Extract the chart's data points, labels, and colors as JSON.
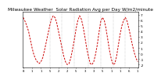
{
  "title": "Milwaukee Weather  Solar Radiation Avg per Day W/m2/minute",
  "title_fontsize": 4.2,
  "bg_color": "#ffffff",
  "line_color": "#cc0000",
  "grid_color": "#999999",
  "ylabel_color": "#000000",
  "ylim": [
    -2.5,
    7.5
  ],
  "yticks": [
    7,
    6,
    5,
    4,
    3,
    2,
    1,
    0,
    -1,
    -2
  ],
  "ytick_labels": [
    "7",
    "6",
    "5",
    "4",
    "3",
    "2",
    "1",
    "0",
    "-1",
    "-2"
  ],
  "ytick_fontsize": 3.2,
  "xtick_fontsize": 2.8,
  "data_y": [
    6.5,
    5.8,
    5.0,
    4.0,
    2.5,
    1.0,
    -0.2,
    -1.0,
    -1.5,
    -1.8,
    -1.5,
    -0.8,
    0.5,
    2.0,
    3.5,
    5.0,
    6.2,
    6.8,
    6.5,
    5.5,
    4.0,
    2.5,
    1.0,
    -0.5,
    -1.5,
    -2.0,
    -1.8,
    -0.8,
    0.8,
    2.5,
    4.5,
    6.0,
    6.8,
    6.2,
    4.8,
    3.0,
    1.0,
    -0.5,
    -1.8,
    -2.0,
    -1.5,
    -0.2,
    1.5,
    3.8,
    5.8,
    6.5,
    6.0,
    4.5,
    2.5,
    0.5,
    -1.0,
    -2.0,
    -1.8,
    -0.5,
    1.5,
    3.5,
    5.0,
    6.0,
    6.5,
    5.8,
    4.5,
    3.0,
    1.5,
    0.2,
    -0.8,
    -1.5
  ],
  "vgrid_positions": [
    15,
    22,
    29,
    37,
    44,
    51,
    58
  ],
  "xtick_positions": [
    0,
    5,
    10,
    15,
    20,
    25,
    30,
    35,
    40,
    45,
    50,
    55,
    60,
    65
  ],
  "xtick_labels": [
    "8",
    "1",
    "1",
    "5",
    "2",
    "2",
    "5",
    "3",
    "3",
    "5",
    "1",
    "1",
    "6",
    "1"
  ]
}
